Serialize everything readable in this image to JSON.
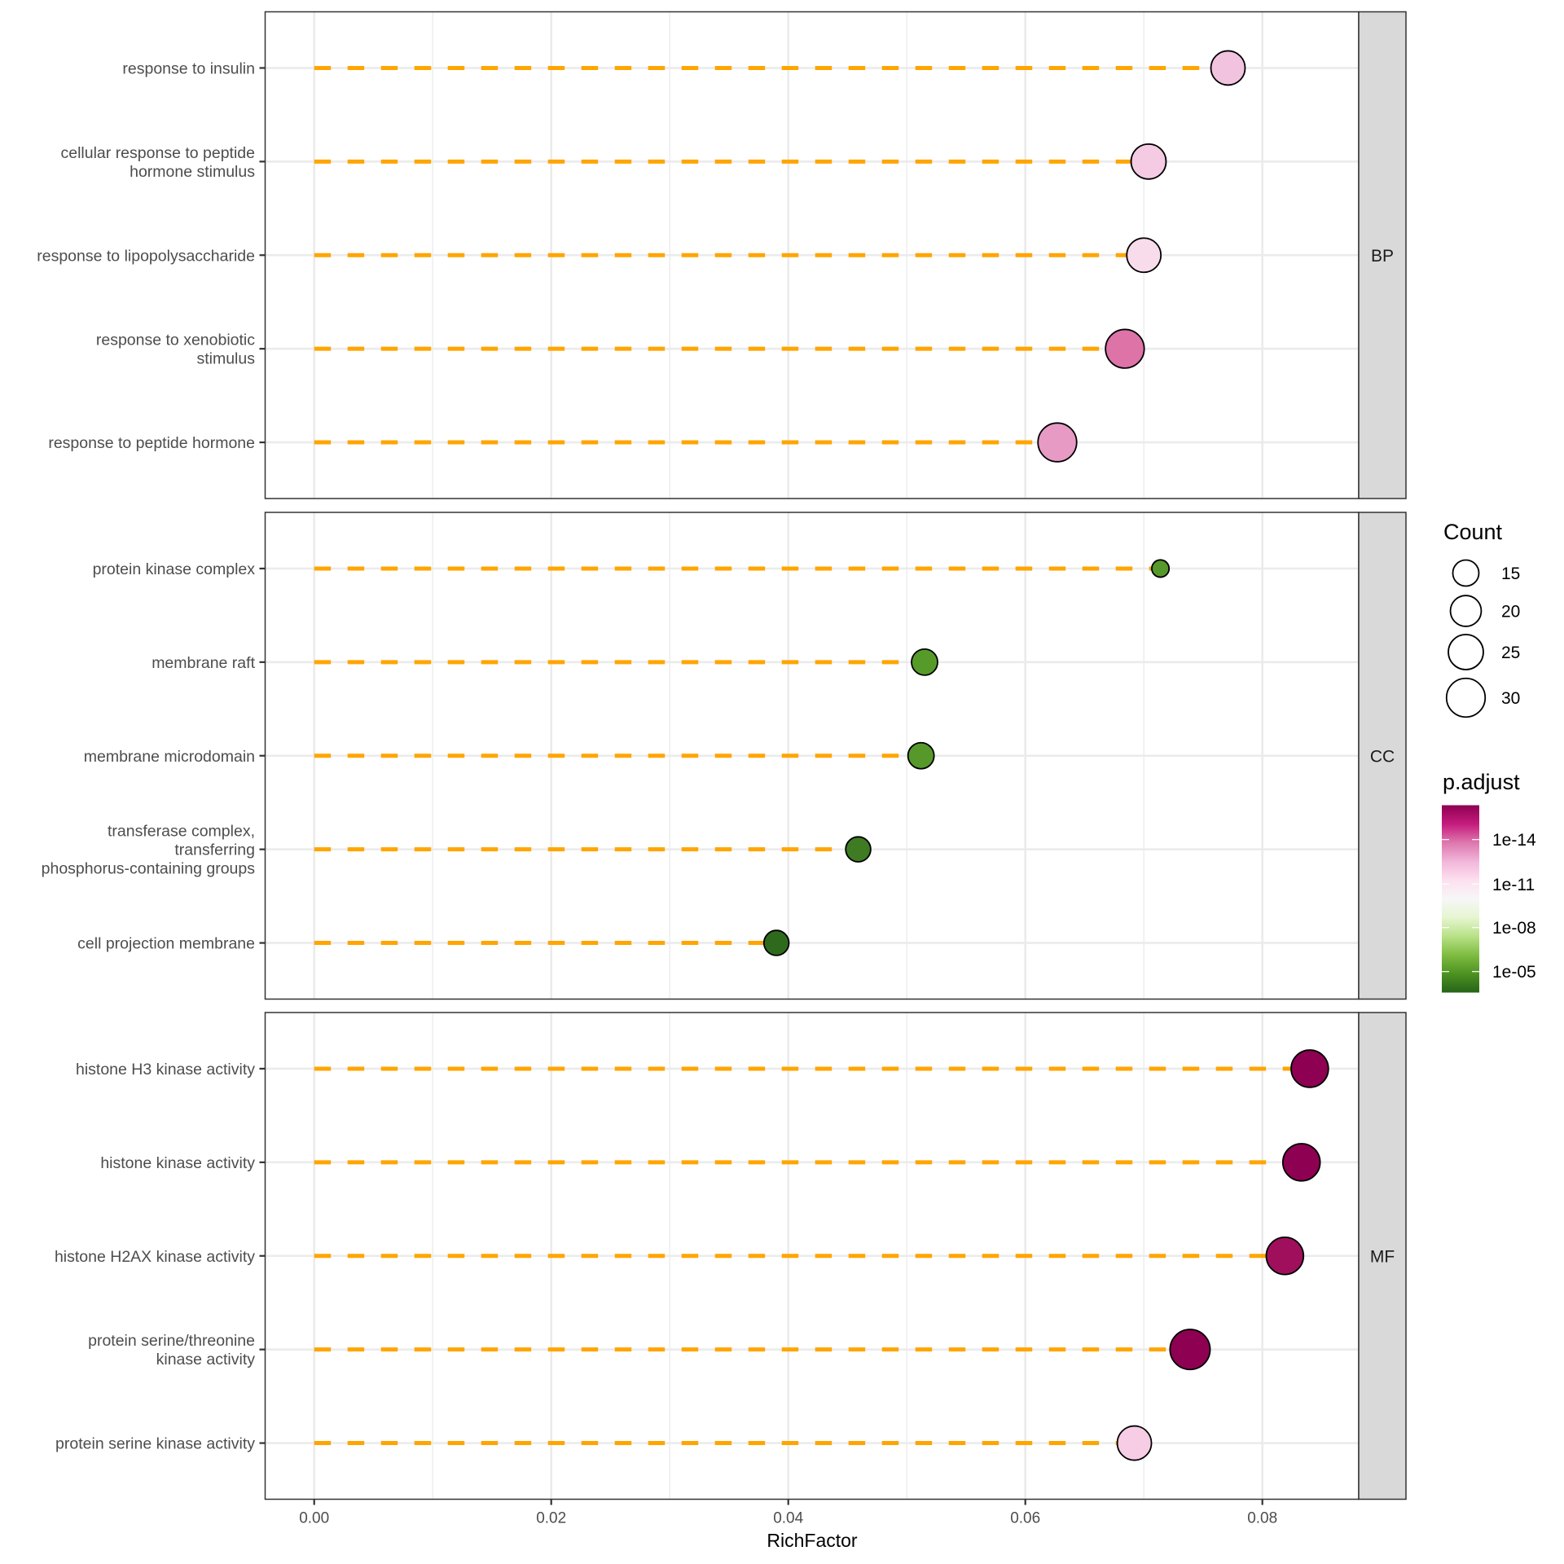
{
  "chart_data": {
    "type": "scatter",
    "subtype": "lollipop-faceted",
    "title": "",
    "xlabel": "RichFactor",
    "ylabel": "",
    "xlim": [
      -0.0041,
      0.0881
    ],
    "x_ticks": [
      0.0,
      0.02,
      0.04,
      0.06,
      0.08
    ],
    "x_tick_labels": [
      "0.00",
      "0.02",
      "0.04",
      "0.06",
      "0.08"
    ],
    "x_minor_grid": [
      0.01,
      0.03,
      0.05,
      0.07
    ],
    "grid": true,
    "segment_color": "#FFA500",
    "segment_style": "dashed",
    "facets": [
      {
        "name": "BP",
        "terms": [
          {
            "label": [
              "response to insulin"
            ],
            "richFactor": 0.0771,
            "count": 24,
            "color": "#F2C3DE"
          },
          {
            "label": [
              "cellular response to peptide",
              "hormone stimulus"
            ],
            "richFactor": 0.0704,
            "count": 25,
            "color": "#F4CBE3"
          },
          {
            "label": [
              "response to lipopolysaccharide"
            ],
            "richFactor": 0.07,
            "count": 24,
            "color": "#F9DCEB"
          },
          {
            "label": [
              "response to xenobiotic",
              "stimulus"
            ],
            "richFactor": 0.0684,
            "count": 30,
            "color": "#DE73A8"
          },
          {
            "label": [
              "response to peptide hormone"
            ],
            "richFactor": 0.0627,
            "count": 30,
            "color": "#E79AC4"
          }
        ]
      },
      {
        "name": "CC",
        "terms": [
          {
            "label": [
              "protein kinase complex"
            ],
            "richFactor": 0.0714,
            "count": 8,
            "color": "#56992A"
          },
          {
            "label": [
              "membrane raft"
            ],
            "richFactor": 0.0515,
            "count": 15,
            "color": "#569B2A"
          },
          {
            "label": [
              "membrane microdomain"
            ],
            "richFactor": 0.0512,
            "count": 15,
            "color": "#56992A"
          },
          {
            "label": [
              "transferase complex,",
              "transferring",
              "phosphorus-containing groups"
            ],
            "richFactor": 0.0459,
            "count": 14,
            "color": "#3E7B22"
          },
          {
            "label": [
              "cell projection membrane"
            ],
            "richFactor": 0.039,
            "count": 14,
            "color": "#2E6A1C"
          }
        ]
      },
      {
        "name": "MF",
        "terms": [
          {
            "label": [
              "histone H3 kinase activity"
            ],
            "richFactor": 0.084,
            "count": 28,
            "color": "#8E0152"
          },
          {
            "label": [
              "histone kinase activity"
            ],
            "richFactor": 0.0833,
            "count": 28,
            "color": "#8E0152"
          },
          {
            "label": [
              "histone H2AX kinase activity"
            ],
            "richFactor": 0.0819,
            "count": 28,
            "color": "#A00F5C"
          },
          {
            "label": [
              "protein serine/threonine",
              "kinase activity"
            ],
            "richFactor": 0.0739,
            "count": 32,
            "color": "#8E0152"
          },
          {
            "label": [
              "protein serine kinase activity"
            ],
            "richFactor": 0.0692,
            "count": 24,
            "color": "#F6CDE4"
          }
        ]
      }
    ],
    "legend": {
      "position": "right",
      "size": {
        "title": "Count",
        "breaks": [
          15,
          20,
          25,
          30
        ],
        "labels": [
          "15",
          "20",
          "25",
          "30"
        ]
      },
      "color": {
        "title": "p.adjust",
        "scale": "log10",
        "breaks_labels": [
          "1e-14",
          "1e-11",
          "1e-08",
          "1e-05"
        ],
        "gradient": [
          "#8E0152",
          "#C51B7D",
          "#DE77AE",
          "#F1B6DA",
          "#FDE0EF",
          "#F7F7F7",
          "#E6F5D0",
          "#B8E186",
          "#7FBC41",
          "#4D9221",
          "#276419"
        ]
      }
    }
  }
}
